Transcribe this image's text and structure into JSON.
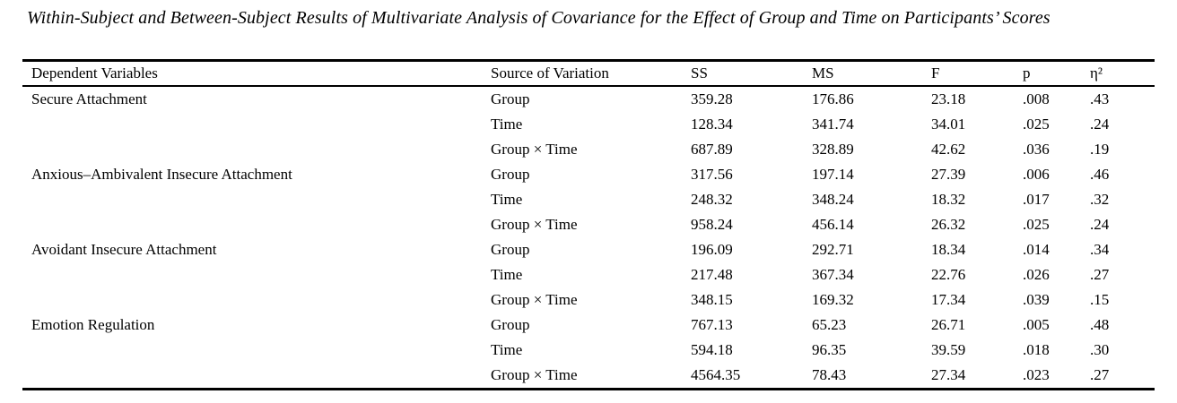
{
  "title": "Within-Subject and Between-Subject Results of Multivariate Analysis of Covariance for the Effect of Group and Time on Participants’ Scores",
  "table": {
    "columns": [
      "Dependent Variables",
      "Source of Variation",
      "SS",
      "MS",
      "F",
      "p",
      "η²"
    ],
    "groups": [
      {
        "dependent_variable": "Secure Attachment",
        "rows": [
          {
            "source": "Group",
            "ss": "359.28",
            "ms": "176.86",
            "f": "23.18",
            "p": ".008",
            "eta2": ".43"
          },
          {
            "source": "Time",
            "ss": "128.34",
            "ms": "341.74",
            "f": "34.01",
            "p": ".025",
            "eta2": ".24"
          },
          {
            "source": "Group × Time",
            "ss": "687.89",
            "ms": "328.89",
            "f": "42.62",
            "p": ".036",
            "eta2": ".19"
          }
        ]
      },
      {
        "dependent_variable": "Anxious–Ambivalent Insecure Attachment",
        "rows": [
          {
            "source": "Group",
            "ss": "317.56",
            "ms": "197.14",
            "f": "27.39",
            "p": ".006",
            "eta2": ".46"
          },
          {
            "source": "Time",
            "ss": "248.32",
            "ms": "348.24",
            "f": "18.32",
            "p": ".017",
            "eta2": ".32"
          },
          {
            "source": "Group × Time",
            "ss": "958.24",
            "ms": "456.14",
            "f": "26.32",
            "p": ".025",
            "eta2": ".24"
          }
        ]
      },
      {
        "dependent_variable": "Avoidant Insecure Attachment",
        "rows": [
          {
            "source": "Group",
            "ss": "196.09",
            "ms": "292.71",
            "f": "18.34",
            "p": ".014",
            "eta2": ".34"
          },
          {
            "source": "Time",
            "ss": "217.48",
            "ms": "367.34",
            "f": "22.76",
            "p": ".026",
            "eta2": ".27"
          },
          {
            "source": "Group × Time",
            "ss": "348.15",
            "ms": "169.32",
            "f": "17.34",
            "p": ".039",
            "eta2": ".15"
          }
        ]
      },
      {
        "dependent_variable": "Emotion Regulation",
        "rows": [
          {
            "source": "Group",
            "ss": "767.13",
            "ms": "65.23",
            "f": "26.71",
            "p": ".005",
            "eta2": ".48"
          },
          {
            "source": "Time",
            "ss": "594.18",
            "ms": "96.35",
            "f": "39.59",
            "p": ".018",
            "eta2": ".30"
          },
          {
            "source": "Group × Time",
            "ss": "4564.35",
            "ms": "78.43",
            "f": "27.34",
            "p": ".023",
            "eta2": ".27"
          }
        ]
      }
    ]
  },
  "colors": {
    "text": "#000000",
    "background": "#ffffff",
    "border": "#000000"
  }
}
